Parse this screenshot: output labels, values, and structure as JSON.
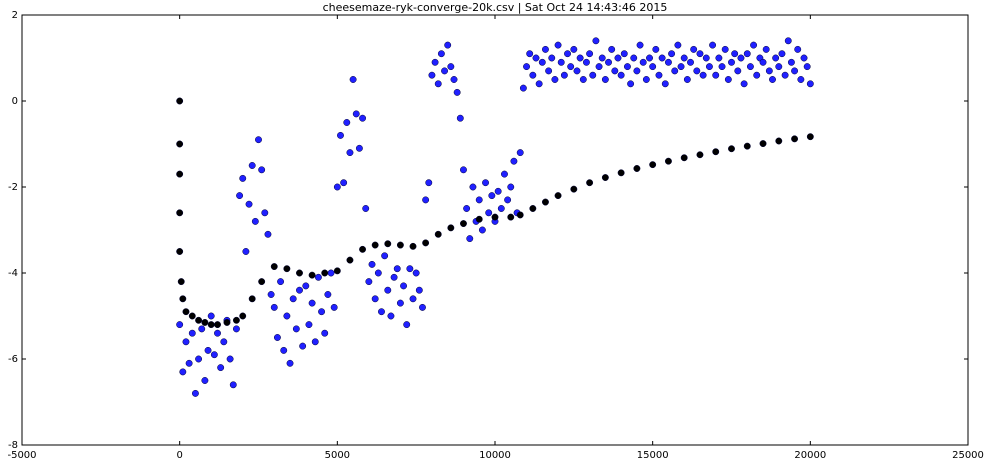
{
  "chart_data": {
    "type": "scatter",
    "title": "cheesemaze-ryk-converge-20k.csv | Sat Oct 24 14:43:46 2015",
    "xlim": [
      -5000,
      25000
    ],
    "ylim": [
      -8,
      2
    ],
    "xticks": [
      -5000,
      0,
      5000,
      10000,
      15000,
      20000,
      25000
    ],
    "yticks": [
      -8,
      -6,
      -4,
      -2,
      0,
      2
    ],
    "grid": false,
    "series": [
      {
        "color": "#2020ff",
        "x": [
          0,
          100,
          200,
          300,
          400,
          500,
          600,
          700,
          800,
          900,
          1000,
          1100,
          1200,
          1300,
          1400,
          1500,
          1600,
          1700,
          1800,
          1900,
          2000,
          2100,
          2200,
          2300,
          2400,
          2500,
          2600,
          2700,
          2800,
          2900,
          3000,
          3100,
          3200,
          3300,
          3400,
          3500,
          3600,
          3700,
          3800,
          3900,
          4000,
          4100,
          4200,
          4300,
          4400,
          4500,
          4600,
          4700,
          4800,
          4900,
          5000,
          5100,
          5200,
          5300,
          5400,
          5500,
          5600,
          5700,
          5800,
          5900,
          6000,
          6100,
          6200,
          6300,
          6400,
          6500,
          6600,
          6700,
          6800,
          6900,
          7000,
          7100,
          7200,
          7300,
          7400,
          7500,
          7600,
          7700,
          7800,
          7900,
          8000,
          8100,
          8200,
          8300,
          8400,
          8500,
          8600,
          8700,
          8800,
          8900,
          9000,
          9100,
          9200,
          9300,
          9400,
          9500,
          9600,
          9700,
          9800,
          9900,
          10000,
          10100,
          10200,
          10300,
          10400,
          10500,
          10600,
          10700,
          10800,
          10900,
          11000,
          11100,
          11200,
          11300,
          11400,
          11500,
          11600,
          11700,
          11800,
          11900,
          12000,
          12100,
          12200,
          12300,
          12400,
          12500,
          12600,
          12700,
          12800,
          12900,
          13000,
          13100,
          13200,
          13300,
          13400,
          13500,
          13600,
          13700,
          13800,
          13900,
          14000,
          14100,
          14200,
          14300,
          14400,
          14500,
          14600,
          14700,
          14800,
          14900,
          15000,
          15100,
          15200,
          15300,
          15400,
          15500,
          15600,
          15700,
          15800,
          15900,
          16000,
          16100,
          16200,
          16300,
          16400,
          16500,
          16600,
          16700,
          16800,
          16900,
          17000,
          17100,
          17200,
          17300,
          17400,
          17500,
          17600,
          17700,
          17800,
          17900,
          18000,
          18100,
          18200,
          18300,
          18400,
          18500,
          18600,
          18700,
          18800,
          18900,
          19000,
          19100,
          19200,
          19300,
          19400,
          19500,
          19600,
          19700,
          19800,
          19900,
          20000
        ],
        "values": [
          -5.2,
          -6.3,
          -5.6,
          -6.1,
          -5.4,
          -6.8,
          -6.0,
          -5.3,
          -6.5,
          -5.8,
          -5.0,
          -5.9,
          -5.4,
          -6.2,
          -5.6,
          -5.1,
          -6.0,
          -6.6,
          -5.3,
          -2.2,
          -1.8,
          -3.5,
          -2.4,
          -1.5,
          -2.8,
          -0.9,
          -1.6,
          -2.6,
          -3.1,
          -4.5,
          -4.8,
          -5.5,
          -4.2,
          -5.8,
          -5.0,
          -6.1,
          -4.6,
          -5.3,
          -4.4,
          -5.7,
          -4.3,
          -5.2,
          -4.7,
          -5.6,
          -4.1,
          -4.9,
          -5.4,
          -4.5,
          -4.0,
          -4.8,
          -2.0,
          -0.8,
          -1.9,
          -0.5,
          -1.2,
          0.5,
          -0.3,
          -1.1,
          -0.4,
          -2.5,
          -4.2,
          -3.8,
          -4.6,
          -4.0,
          -4.9,
          -3.6,
          -4.4,
          -5.0,
          -4.1,
          -3.9,
          -4.7,
          -4.3,
          -5.2,
          -3.9,
          -4.6,
          -4.0,
          -4.4,
          -4.8,
          -2.3,
          -1.9,
          0.6,
          0.9,
          0.4,
          1.1,
          0.7,
          1.3,
          0.8,
          0.5,
          0.2,
          -0.4,
          -1.6,
          -2.5,
          -3.2,
          -2.0,
          -2.8,
          -2.3,
          -3.0,
          -1.9,
          -2.6,
          -2.2,
          -2.8,
          -2.1,
          -2.5,
          -1.7,
          -2.3,
          -2.0,
          -1.4,
          -2.6,
          -1.2,
          0.3,
          0.8,
          1.1,
          0.6,
          1.0,
          0.4,
          0.9,
          1.2,
          0.7,
          1.0,
          0.5,
          1.3,
          0.9,
          0.6,
          1.1,
          0.8,
          1.2,
          0.7,
          1.0,
          0.5,
          0.9,
          1.1,
          0.6,
          1.4,
          0.8,
          1.0,
          0.5,
          0.9,
          1.2,
          0.7,
          1.0,
          0.6,
          1.1,
          0.8,
          0.4,
          1.0,
          0.7,
          1.3,
          0.9,
          0.5,
          1.0,
          0.8,
          1.2,
          0.6,
          1.0,
          0.4,
          0.9,
          1.1,
          0.7,
          1.3,
          0.8,
          1.0,
          0.5,
          0.9,
          1.2,
          0.7,
          1.1,
          0.6,
          1.0,
          0.8,
          1.3,
          0.6,
          1.0,
          0.8,
          1.2,
          0.5,
          0.9,
          1.1,
          0.7,
          1.0,
          0.4,
          1.1,
          0.8,
          1.3,
          0.6,
          1.0,
          0.9,
          1.2,
          0.7,
          0.5,
          1.0,
          0.8,
          1.1,
          0.6,
          1.4,
          0.9,
          0.7,
          1.2,
          0.5,
          1.0,
          0.8,
          0.4
        ]
      },
      {
        "color": "#000000",
        "x": [
          0,
          0,
          0,
          0,
          0,
          50,
          100,
          200,
          400,
          600,
          800,
          1000,
          1200,
          1500,
          1800,
          2000,
          2300,
          2600,
          3000,
          3400,
          3800,
          4200,
          4600,
          5000,
          5400,
          5800,
          6200,
          6600,
          7000,
          7400,
          7800,
          8200,
          8600,
          9000,
          9500,
          10000,
          10500,
          10800,
          11200,
          11600,
          12000,
          12500,
          13000,
          13500,
          14000,
          14500,
          15000,
          15500,
          16000,
          16500,
          17000,
          17500,
          18000,
          18500,
          19000,
          19500,
          20000
        ],
        "values": [
          0,
          -1,
          -1.7,
          -2.6,
          -3.5,
          -4.2,
          -4.6,
          -4.9,
          -5.0,
          -5.1,
          -5.15,
          -5.2,
          -5.2,
          -5.15,
          -5.1,
          -5.0,
          -4.6,
          -4.2,
          -3.85,
          -3.9,
          -4.0,
          -4.05,
          -4.0,
          -3.95,
          -3.7,
          -3.45,
          -3.35,
          -3.32,
          -3.35,
          -3.38,
          -3.3,
          -3.1,
          -2.95,
          -2.85,
          -2.75,
          -2.7,
          -2.7,
          -2.65,
          -2.5,
          -2.35,
          -2.2,
          -2.05,
          -1.9,
          -1.78,
          -1.67,
          -1.57,
          -1.48,
          -1.4,
          -1.32,
          -1.25,
          -1.18,
          -1.11,
          -1.05,
          -0.99,
          -0.93,
          -0.88,
          -0.83
        ]
      }
    ]
  }
}
